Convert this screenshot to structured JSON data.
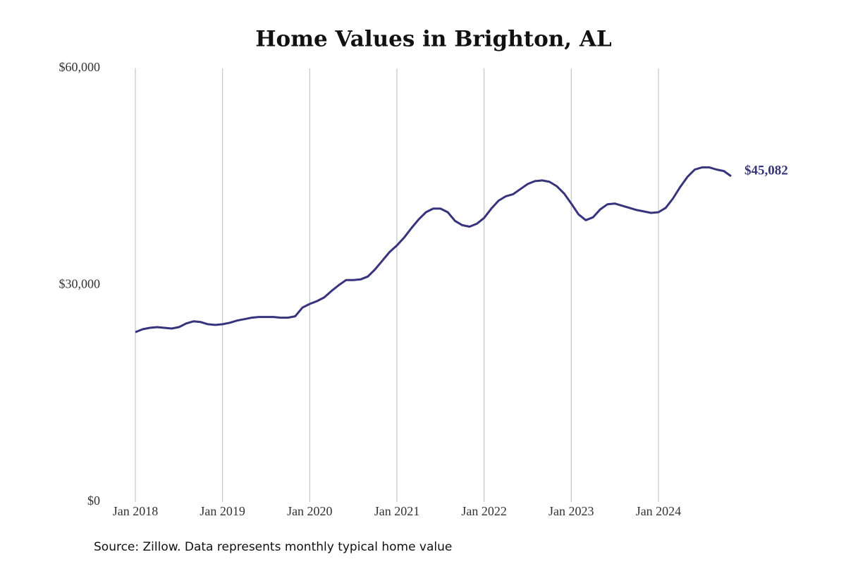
{
  "chart_data": {
    "type": "line",
    "title": "Home Values in Brighton, AL",
    "source": "Source: Zillow. Data represents monthly typical home value",
    "x": [
      "2018-01",
      "2018-02",
      "2018-03",
      "2018-04",
      "2018-05",
      "2018-06",
      "2018-07",
      "2018-08",
      "2018-09",
      "2018-10",
      "2018-11",
      "2018-12",
      "2019-01",
      "2019-02",
      "2019-03",
      "2019-04",
      "2019-05",
      "2019-06",
      "2019-07",
      "2019-08",
      "2019-09",
      "2019-10",
      "2019-11",
      "2019-12",
      "2020-01",
      "2020-02",
      "2020-03",
      "2020-04",
      "2020-05",
      "2020-06",
      "2020-07",
      "2020-08",
      "2020-09",
      "2020-10",
      "2020-11",
      "2020-12",
      "2021-01",
      "2021-02",
      "2021-03",
      "2021-04",
      "2021-05",
      "2021-06",
      "2021-07",
      "2021-08",
      "2021-09",
      "2021-10",
      "2021-11",
      "2021-12",
      "2022-01",
      "2022-02",
      "2022-03",
      "2022-04",
      "2022-05",
      "2022-06",
      "2022-07",
      "2022-08",
      "2022-09",
      "2022-10",
      "2022-11",
      "2022-12",
      "2023-01",
      "2023-02",
      "2023-03",
      "2023-04",
      "2023-05",
      "2023-06",
      "2023-07",
      "2023-08",
      "2023-09",
      "2023-10",
      "2023-11",
      "2023-12",
      "2024-01",
      "2024-02",
      "2024-03",
      "2024-04",
      "2024-05",
      "2024-06",
      "2024-07",
      "2024-08",
      "2024-09",
      "2024-10",
      "2024-11"
    ],
    "series": [
      {
        "name": "Home value",
        "color": "#37347c",
        "values": [
          23500,
          23900,
          24100,
          24200,
          24100,
          24000,
          24200,
          24700,
          25000,
          24900,
          24600,
          24500,
          24600,
          24800,
          25100,
          25300,
          25500,
          25600,
          25600,
          25600,
          25500,
          25500,
          25700,
          26900,
          27400,
          27800,
          28300,
          29200,
          30000,
          30700,
          30700,
          30800,
          31200,
          32200,
          33400,
          34600,
          35500,
          36600,
          37900,
          39100,
          40100,
          40600,
          40600,
          40100,
          38900,
          38300,
          38100,
          38500,
          39300,
          40600,
          41700,
          42300,
          42600,
          43300,
          44000,
          44400,
          44500,
          44300,
          43700,
          42700,
          41300,
          39800,
          39000,
          39400,
          40500,
          41200,
          41300,
          41000,
          40700,
          40400,
          40200,
          40000,
          40100,
          40700,
          42000,
          43600,
          45000,
          46000,
          46300,
          46300,
          46000,
          45800,
          45082
        ],
        "value_labels": [
          null,
          null,
          null,
          null,
          null,
          null,
          null,
          null,
          null,
          null,
          null,
          null,
          null,
          null,
          null,
          null,
          null,
          null,
          null,
          null,
          null,
          null,
          null,
          null,
          null,
          null,
          null,
          null,
          null,
          null,
          null,
          null,
          null,
          null,
          null,
          null,
          null,
          null,
          null,
          null,
          null,
          null,
          null,
          null,
          null,
          null,
          null,
          null,
          null,
          null,
          null,
          null,
          null,
          null,
          null,
          null,
          null,
          null,
          null,
          null,
          null,
          null,
          null,
          null,
          null,
          null,
          null,
          null,
          null,
          null,
          null,
          null,
          null,
          null,
          null,
          null,
          null,
          null,
          null,
          null,
          null,
          null,
          "$45,082"
        ]
      }
    ],
    "ylim": [
      0,
      60000
    ],
    "yticks": [
      {
        "value": 0,
        "label": "$0"
      },
      {
        "value": 30000,
        "label": "$30,000"
      },
      {
        "value": 60000,
        "label": "$60,000"
      }
    ],
    "xticks": [
      {
        "value": "2018-01",
        "label": "Jan 2018"
      },
      {
        "value": "2019-01",
        "label": "Jan 2019"
      },
      {
        "value": "2020-01",
        "label": "Jan 2020"
      },
      {
        "value": "2021-01",
        "label": "Jan 2021"
      },
      {
        "value": "2022-01",
        "label": "Jan 2022"
      },
      {
        "value": "2023-01",
        "label": "Jan 2023"
      },
      {
        "value": "2024-01",
        "label": "Jan 2024"
      }
    ],
    "grid": "x"
  }
}
